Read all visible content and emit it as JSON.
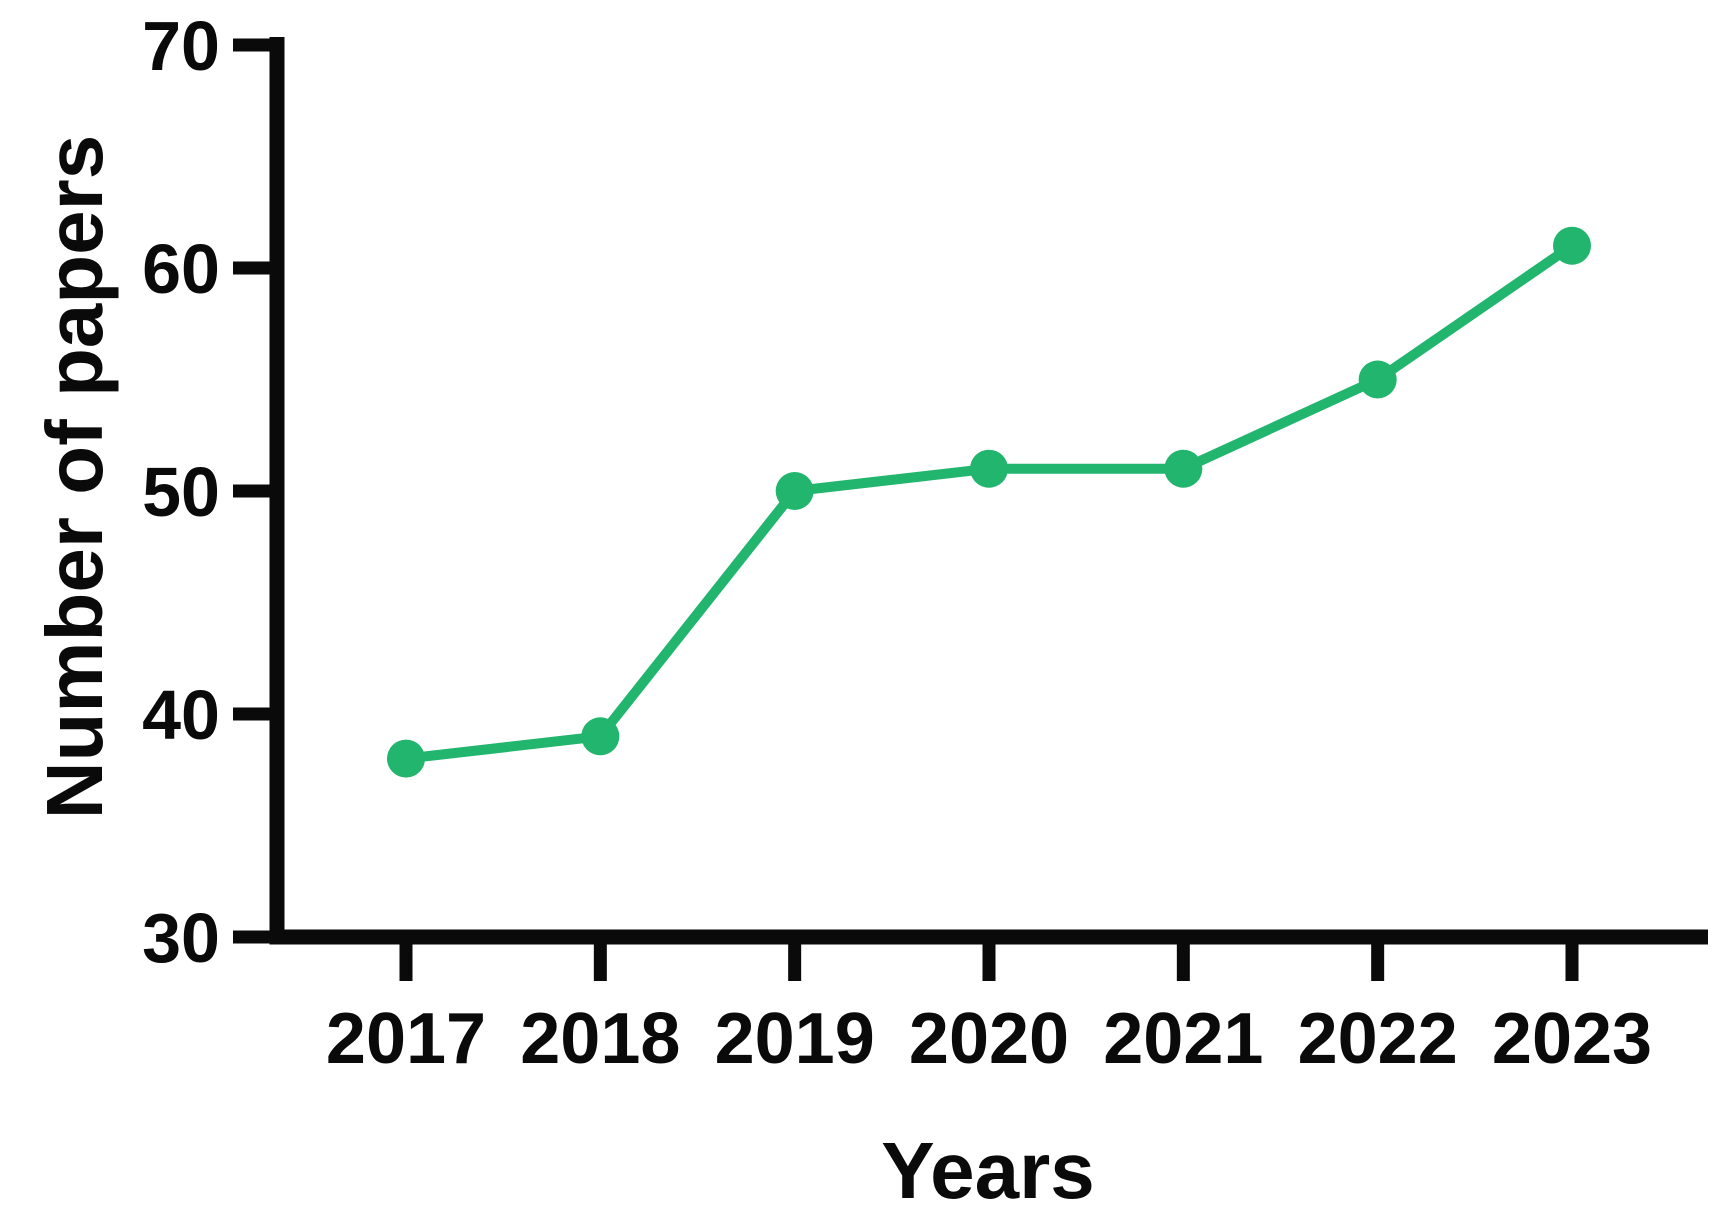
{
  "chart_data": {
    "type": "line",
    "title": "",
    "xlabel": "Years",
    "ylabel": "Number of papers",
    "categories": [
      "2017",
      "2018",
      "2019",
      "2020",
      "2021",
      "2022",
      "2023"
    ],
    "series": [
      {
        "name": "Number of papers",
        "values": [
          38,
          39,
          50,
          51,
          51,
          55,
          61
        ]
      }
    ],
    "ylim": [
      30,
      70
    ],
    "yticks": [
      30,
      40,
      50,
      60,
      70
    ],
    "grid": false,
    "legend_position": "none",
    "marker": "circle",
    "line_color": "#21b56e",
    "axis_color": "#0a0a0a"
  }
}
